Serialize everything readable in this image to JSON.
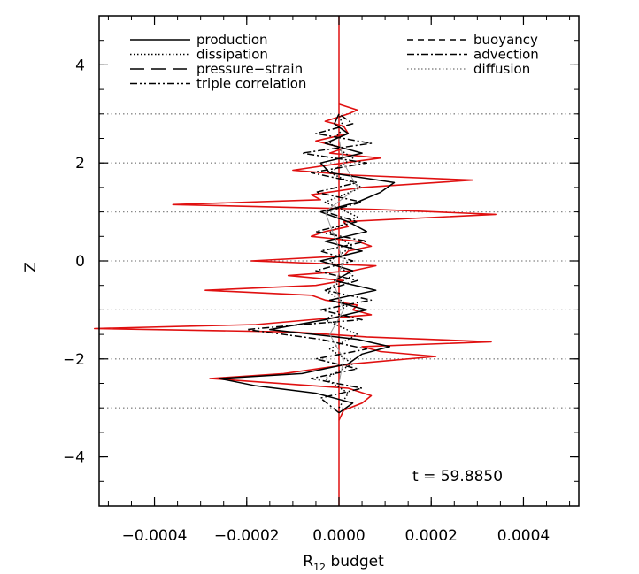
{
  "chart_data": {
    "type": "line",
    "xlabel": "R",
    "xlabel_sub": "12",
    "xlabel_rest": " budget",
    "ylabel": "Z",
    "xlim": [
      -0.00052,
      0.00052
    ],
    "ylim": [
      -5.0,
      5.0
    ],
    "x_ticks": [
      -0.0004,
      -0.0002,
      0.0,
      0.0002,
      0.0004
    ],
    "x_tick_labels": [
      "−0.0004",
      "−0.0002",
      "0.0000",
      "0.0002",
      "0.0004"
    ],
    "y_ticks": [
      -4,
      -2,
      0,
      2,
      4
    ],
    "y_tick_labels": [
      "−4",
      "−2",
      "0",
      "2",
      "4"
    ],
    "reference_lines_z": [
      3,
      2,
      1,
      0,
      -1,
      -2,
      -3
    ],
    "annotation": "t = 59.8850",
    "legend": {
      "placement": "top",
      "left_entries": [
        {
          "label": "production",
          "dash": "solid"
        },
        {
          "label": "dissipation",
          "dash": "dotted"
        },
        {
          "label": "pressure−strain",
          "dash": "longdash"
        },
        {
          "label": "triple correlation",
          "dash": "dashdotdot"
        }
      ],
      "right_entries": [
        {
          "label": "buoyancy",
          "dash": "dashed"
        },
        {
          "label": "advection",
          "dash": "dashdot"
        },
        {
          "label": "diffusion",
          "dash": "dotted-gray"
        }
      ]
    },
    "colors": {
      "total": "#e01010",
      "terms": "#000000",
      "reference": "#888888"
    },
    "series": [
      {
        "style": "red",
        "z": [
          -3.25,
          -3.05,
          -2.9,
          -2.75,
          -2.6,
          -2.4,
          -2.3,
          -2.1,
          -1.95,
          -1.85,
          -1.75,
          -1.65,
          -1.55,
          -1.45,
          -1.38,
          -1.3,
          -1.2,
          -1.1,
          -1.0,
          -0.9,
          -0.8,
          -0.7,
          -0.6,
          -0.5,
          -0.4,
          -0.3,
          -0.2,
          -0.1,
          0.0,
          0.1,
          0.2,
          0.3,
          0.4,
          0.5,
          0.6,
          0.7,
          0.8,
          0.95,
          1.05,
          1.15,
          1.25,
          1.35,
          1.5,
          1.65,
          1.75,
          1.85,
          2.0,
          2.1,
          2.2,
          2.3,
          2.45,
          2.6,
          2.75,
          2.85,
          3.0,
          3.08,
          3.2
        ],
        "x": [
          0.0,
          1e-05,
          5e-05,
          7e-05,
          2e-05,
          -0.00028,
          -0.00012,
          3e-05,
          0.00021,
          9e-05,
          5e-05,
          0.00033,
          6e-05,
          -0.0001,
          -0.00053,
          -0.00018,
          -6e-05,
          7e-05,
          3e-05,
          4e-05,
          -3e-05,
          -6e-05,
          -0.00029,
          -5e-05,
          1e-05,
          -0.00011,
          3e-05,
          8e-05,
          -0.00019,
          1e-05,
          2e-05,
          7e-05,
          4e-05,
          -6e-05,
          -3e-05,
          2e-05,
          1e-05,
          0.00034,
          8e-05,
          -0.00036,
          -4e-05,
          -6e-05,
          5e-05,
          0.00029,
          3e-05,
          -0.0001,
          1e-05,
          9e-05,
          -2e-05,
          1e-05,
          -5e-05,
          2e-05,
          1e-05,
          -3e-05,
          2e-05,
          4e-05,
          0.0
        ]
      },
      {
        "style": "solid",
        "z": [
          -3.1,
          -2.9,
          -2.7,
          -2.55,
          -2.4,
          -2.3,
          -2.1,
          -1.9,
          -1.75,
          -1.6,
          -1.4,
          -1.2,
          -1.0,
          -0.8,
          -0.6,
          -0.4,
          -0.2,
          0.0,
          0.2,
          0.4,
          0.6,
          0.8,
          1.0,
          1.2,
          1.4,
          1.6,
          1.8,
          2.0,
          2.2,
          2.4,
          2.6,
          2.8,
          3.0
        ],
        "x": [
          0.0,
          3e-05,
          -5e-05,
          -0.00018,
          -0.00026,
          -8e-05,
          2e-05,
          5e-05,
          0.00011,
          4e-05,
          -0.00015,
          -3e-05,
          6e-05,
          -2e-05,
          8e-05,
          -1e-05,
          3e-05,
          -4e-05,
          5e-05,
          -3e-05,
          6e-05,
          2e-05,
          -4e-05,
          4e-05,
          9e-05,
          0.00012,
          -2e-05,
          -4e-05,
          5e-05,
          -3e-05,
          2e-05,
          -1e-05,
          0.0
        ]
      },
      {
        "style": "dashdot",
        "z": [
          -3.1,
          -2.8,
          -2.6,
          -2.4,
          -2.2,
          -2.0,
          -1.8,
          -1.6,
          -1.4,
          -1.3,
          -1.2,
          -1.0,
          -0.8,
          -0.6,
          -0.4,
          -0.2,
          0.0,
          0.2,
          0.4,
          0.6,
          0.8,
          1.0,
          1.2,
          1.4,
          1.6,
          1.8,
          2.0,
          2.2,
          2.4,
          2.6,
          2.8,
          3.0
        ],
        "x": [
          0.0,
          -4e-05,
          5e-05,
          -6e-05,
          4e-05,
          -5e-05,
          6e-05,
          -4e-05,
          -0.0002,
          -8e-05,
          5e-05,
          -4e-05,
          7e-05,
          -3e-05,
          4e-05,
          -5e-05,
          3e-05,
          -4e-05,
          6e-05,
          -5e-05,
          4e-05,
          -3e-05,
          5e-05,
          -5e-05,
          4e-05,
          -6e-05,
          6e-05,
          -8e-05,
          7e-05,
          -5e-05,
          3e-05,
          0.0
        ]
      },
      {
        "style": "dotted",
        "z": [
          -3.0,
          -2.7,
          -2.4,
          -2.1,
          -1.8,
          -1.5,
          -1.2,
          -0.9,
          -0.6,
          -0.3,
          0.0,
          0.3,
          0.6,
          0.9,
          1.2,
          1.5,
          1.8,
          2.1,
          2.4,
          2.7,
          3.0
        ],
        "x": [
          0.0,
          2e-05,
          -3e-05,
          3e-05,
          -2e-05,
          4e-05,
          -3e-05,
          2e-05,
          -3e-05,
          3e-05,
          -2e-05,
          3e-05,
          -2e-05,
          4e-05,
          -3e-05,
          5e-05,
          -2e-05,
          3e-05,
          -2e-05,
          1e-05,
          0.0
        ]
      },
      {
        "style": "gray",
        "z": [
          -2.5,
          -2.0,
          -1.5,
          -1.0,
          -0.5,
          0.0,
          0.5,
          1.0,
          1.5,
          2.0,
          2.5
        ],
        "x": [
          0.0,
          1e-05,
          -2e-05,
          1e-05,
          -1e-05,
          1e-05,
          -1e-05,
          -3e-05,
          4e-05,
          1e-05,
          0.0
        ]
      }
    ]
  }
}
